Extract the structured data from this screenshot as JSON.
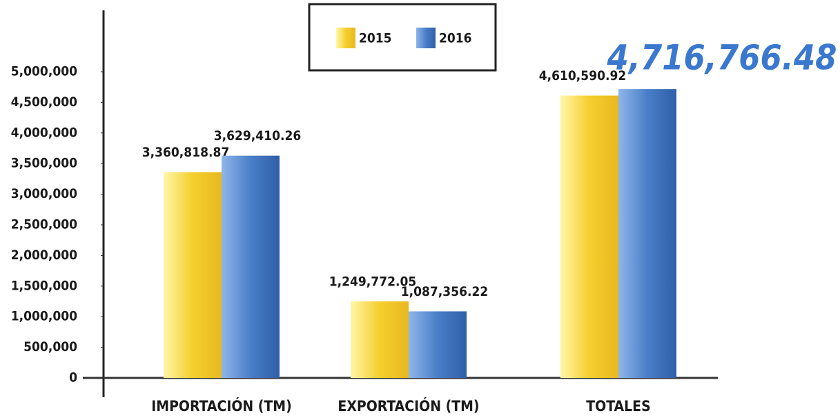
{
  "chart_data": {
    "type": "bar",
    "categories": [
      "IMPORTACIÓN (TM)",
      "EXPORTACIÓN (TM)",
      "TOTALES"
    ],
    "series": [
      {
        "name": "2015",
        "color": "#f5cf2e",
        "values": [
          3360818.87,
          1249772.05,
          4610590.92
        ],
        "value_labels": [
          "3,360,818.87",
          "1,249,772.05",
          "4,610,590.92"
        ]
      },
      {
        "name": "2016",
        "color": "#4a7ec8",
        "values": [
          3629410.26,
          1087356.22,
          4716766.48
        ],
        "value_labels": [
          "3,629,410.26",
          "1,087,356.22",
          "4,716,766.48"
        ]
      }
    ],
    "ylim": [
      0,
      5000000
    ],
    "yticks": [
      0,
      {
        "value": 500000,
        "label": "500,000"
      },
      {
        "value": 1000000,
        "label": "1,000,000"
      },
      {
        "value": 1500000,
        "label": "1,500,000"
      },
      {
        "value": 2000000,
        "label": "2,000,000"
      },
      {
        "value": 2500000,
        "label": "2,500,000"
      },
      {
        "value": 3000000,
        "label": "3,000,000"
      },
      {
        "value": 3500000,
        "label": "3,500,000"
      },
      {
        "value": 4000000,
        "label": "4,000,000"
      },
      {
        "value": 4500000,
        "label": "4,500,000"
      },
      {
        "value": 5000000,
        "label": "5,000,000"
      }
    ],
    "legend": "top"
  }
}
